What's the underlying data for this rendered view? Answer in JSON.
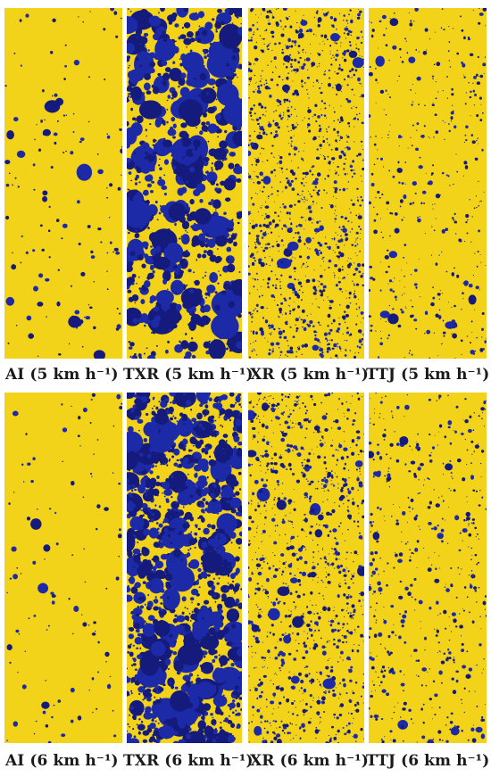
{
  "colors": {
    "background": "#ffffff",
    "paper": "#f3d21a",
    "paper_light": "#f7dd32",
    "droplet": "#1d2aa8",
    "droplet_dark": "#141b7c",
    "label_text": "#1a1a1a"
  },
  "rows": [
    {
      "labels": [
        {
          "name": "AI",
          "text": "AI (5 km h⁻¹)"
        },
        {
          "name": "TXR",
          "text": "TXR (5 km h⁻¹)"
        },
        {
          "name": "XR",
          "text": "XR (5 km h⁻¹)"
        },
        {
          "name": "TTJ",
          "text": "TTJ (5 km h⁻¹)"
        }
      ]
    },
    {
      "labels": [
        {
          "name": "AI",
          "text": "AI (6 km h⁻¹)"
        },
        {
          "name": "TXR",
          "text": "TXR (6 km h⁻¹)"
        },
        {
          "name": "XR",
          "text": "XR (6 km h⁻¹)"
        },
        {
          "name": "TTJ",
          "text": "TTJ (6 km h⁻¹)"
        }
      ]
    }
  ]
}
